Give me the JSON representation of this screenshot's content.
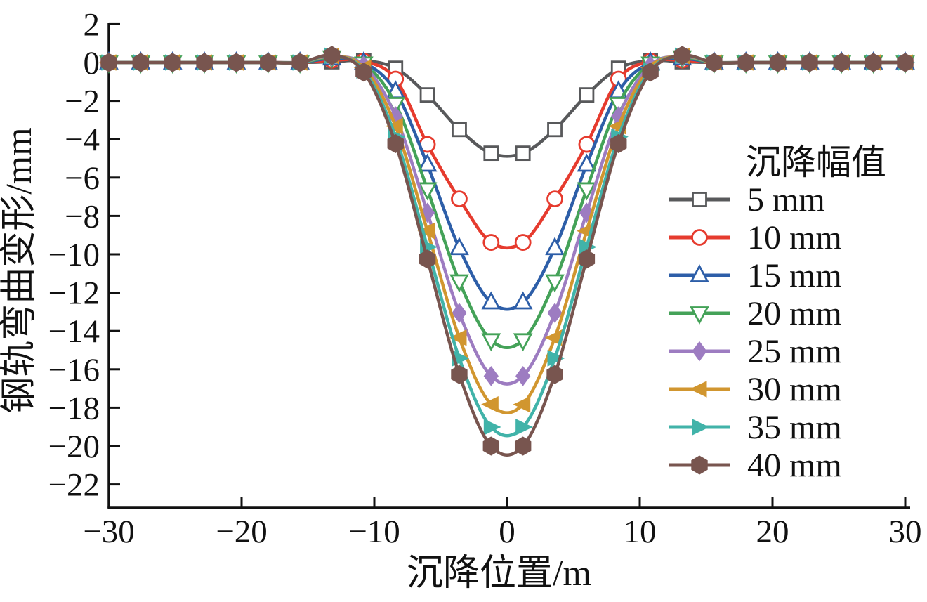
{
  "chart_data": {
    "type": "line",
    "title": "",
    "xlabel": "沉降位置/m",
    "ylabel": "钢轨弯曲变形/mm",
    "xlim": [
      -30,
      30
    ],
    "ylim": [
      -23.2,
      2
    ],
    "x_ticks": [
      -30,
      -20,
      -10,
      0,
      10,
      20,
      30
    ],
    "y_ticks": [
      2,
      0,
      -2,
      -4,
      -6,
      -8,
      -10,
      -12,
      -14,
      -16,
      -18,
      -20,
      -22
    ],
    "grid": false,
    "legend_title": "沉降幅值",
    "legend_position": "right-center",
    "x": [
      -30,
      -27.6,
      -25.2,
      -22.8,
      -20.4,
      -18,
      -15.6,
      -13.2,
      -10.8,
      -8.4,
      -6,
      -3.6,
      -1.2,
      1.2,
      3.6,
      6,
      8.4,
      10.8,
      13.2,
      15.6,
      18,
      20.4,
      22.8,
      25.2,
      27.6,
      30
    ],
    "series": [
      {
        "name": "5 mm",
        "color": "#58595b",
        "marker": "square-open",
        "values": [
          0,
          0,
          0,
          0,
          0,
          0,
          0,
          0.04,
          0.1,
          -0.3,
          -1.69,
          -3.49,
          -4.73,
          -4.73,
          -3.49,
          -1.69,
          -0.3,
          0.1,
          0.04,
          0,
          0,
          0,
          0,
          0,
          0,
          0
        ]
      },
      {
        "name": "10 mm",
        "color": "#e63b2e",
        "marker": "circle-open",
        "values": [
          0,
          0,
          0,
          0,
          0,
          0,
          0,
          0.12,
          0.07,
          -0.86,
          -4.27,
          -7.11,
          -9.38,
          -9.38,
          -7.11,
          -4.27,
          -0.86,
          0.07,
          0.12,
          0,
          0,
          0,
          0,
          0,
          0,
          0
        ]
      },
      {
        "name": "15 mm",
        "color": "#2d5ea8",
        "marker": "triangle-up-open",
        "values": [
          0,
          0,
          0,
          0,
          0,
          0,
          0,
          0.21,
          0.0,
          -1.51,
          -5.33,
          -9.68,
          -12.51,
          -12.51,
          -9.68,
          -5.33,
          -1.51,
          0.0,
          0.21,
          0,
          0,
          0,
          0,
          0,
          0,
          0
        ]
      },
      {
        "name": "20 mm",
        "color": "#44a258",
        "marker": "triangle-down-open",
        "values": [
          0,
          0,
          0,
          0,
          0,
          0,
          0,
          0.27,
          -0.05,
          -2.16,
          -6.61,
          -11.41,
          -14.48,
          -14.48,
          -11.41,
          -6.61,
          -2.16,
          -0.05,
          0.27,
          0,
          0,
          0,
          0,
          0,
          0,
          0
        ]
      },
      {
        "name": "25 mm",
        "color": "#9d7cc1",
        "marker": "diamond",
        "values": [
          0,
          0,
          0,
          0,
          0,
          0,
          0,
          0.32,
          -0.15,
          -2.8,
          -7.83,
          -13.06,
          -16.35,
          -16.35,
          -13.06,
          -7.83,
          -2.8,
          -0.15,
          0.32,
          0,
          0,
          0,
          0,
          0,
          0,
          0
        ]
      },
      {
        "name": "30 mm",
        "color": "#d1962f",
        "marker": "triangle-left",
        "values": [
          0,
          0,
          0,
          0,
          0,
          0,
          0,
          0.34,
          -0.27,
          -3.32,
          -8.78,
          -14.35,
          -17.83,
          -17.83,
          -14.35,
          -8.78,
          -3.32,
          -0.27,
          0.34,
          0,
          0,
          0,
          0,
          0,
          0,
          0
        ]
      },
      {
        "name": "35 mm",
        "color": "#41b3a9",
        "marker": "triangle-right",
        "values": [
          0,
          0,
          0,
          0,
          0,
          0,
          0,
          0.35,
          -0.41,
          -3.87,
          -9.62,
          -15.42,
          -19.01,
          -19.01,
          -15.42,
          -9.62,
          -3.87,
          -0.41,
          0.35,
          0,
          0,
          0,
          0,
          0,
          0,
          0
        ]
      },
      {
        "name": "40 mm",
        "color": "#78554f",
        "marker": "hexagon",
        "values": [
          0,
          0,
          0,
          0,
          0,
          0,
          0,
          0.37,
          -0.5,
          -4.23,
          -10.25,
          -16.27,
          -20.0,
          -20.0,
          -16.27,
          -10.25,
          -4.23,
          -0.5,
          0.37,
          0,
          0,
          0,
          0,
          0,
          0,
          0
        ]
      }
    ]
  }
}
